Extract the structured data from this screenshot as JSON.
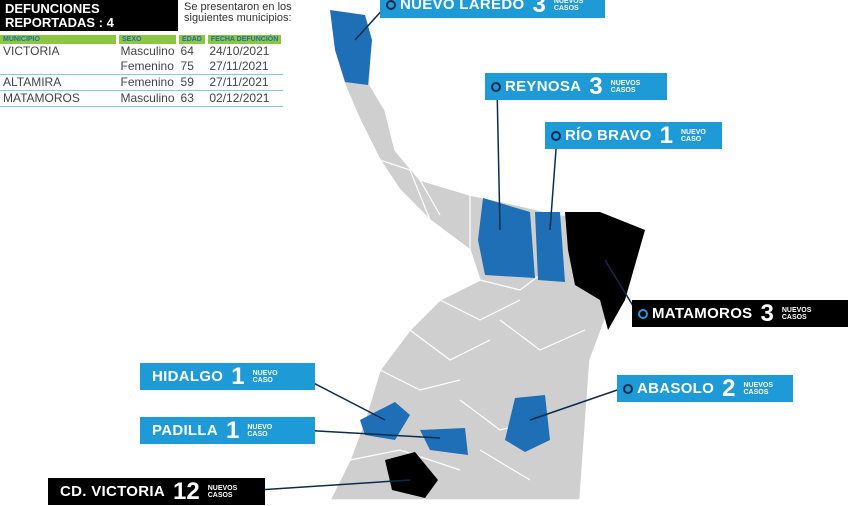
{
  "header": {
    "title_line1": "DEFUNCIONES",
    "title_line2": "REPORTADAS : 4",
    "subtitle": "Se presentaron en los siguientes municipios:"
  },
  "table": {
    "columns": [
      "MUNICIPIO",
      "SEXO",
      "EDAD",
      "FECHA DEFUNCIÓN"
    ],
    "rows": [
      [
        "VICTORIA",
        "Masculino",
        "64",
        "24/10/2021"
      ],
      [
        "",
        "Femenino",
        "75",
        "27/11/2021"
      ],
      [
        "ALTAMIRA",
        "Femenino",
        "59",
        "27/11/2021"
      ],
      [
        "MATAMOROS",
        "Masculino",
        "63",
        "02/12/2021"
      ]
    ]
  },
  "colors": {
    "blue": "#1e9ad6",
    "black": "#000000",
    "map_gray": "#cfcfcf",
    "header_green": "#8dc63f"
  },
  "labels": [
    {
      "name": "NUEVO LAREDO",
      "count": "3",
      "text": "NUEVOS CASOS",
      "color": "blue"
    },
    {
      "name": "REYNOSA",
      "count": "3",
      "text": "NUEVOS CASOS",
      "color": "blue"
    },
    {
      "name": "RÍO BRAVO",
      "count": "1",
      "text": "NUEVO CASO",
      "color": "blue"
    },
    {
      "name": "MATAMOROS",
      "count": "3",
      "text": "NUEVOS CASOS",
      "color": "black"
    },
    {
      "name": "ABASOLO",
      "count": "2",
      "text": "NUEVOS CASOS",
      "color": "blue"
    },
    {
      "name": "HIDALGO",
      "count": "1",
      "text": "NUEVO CASO",
      "color": "blue"
    },
    {
      "name": "PADILLA",
      "count": "1",
      "text": "NUEVO CASO",
      "color": "blue"
    },
    {
      "name": "CD. VICTORIA",
      "count": "12",
      "text": "NUEVOS CASOS",
      "color": "black"
    }
  ]
}
